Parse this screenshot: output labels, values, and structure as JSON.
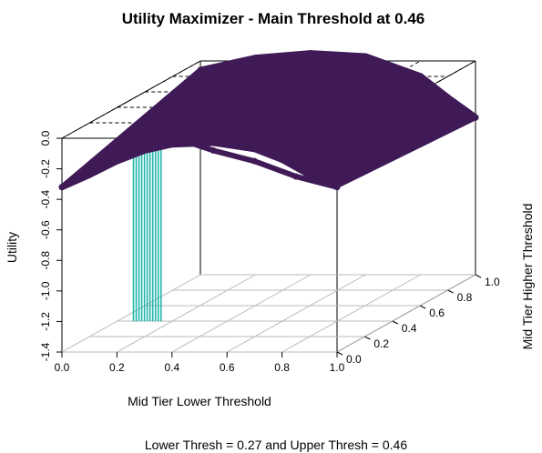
{
  "chart_data": {
    "type": "scatter3d",
    "title": "Utility Maximizer - Main Threshold at 0.46",
    "xlabel": "Mid Tier Lower Threshold",
    "ylabel": "Mid Tier Higher Threshold",
    "zlabel": "Utility",
    "subtitle": "Lower Thresh = 0.27 and Upper Thresh = 0.46",
    "xlim": [
      0,
      1
    ],
    "ylim": [
      0,
      1
    ],
    "zlim": [
      -1.4,
      0
    ],
    "x_ticks": [
      "0.0",
      "0.2",
      "0.4",
      "0.6",
      "0.8",
      "1.0"
    ],
    "y_ticks": [
      "0.0",
      "0.2",
      "0.4",
      "0.6",
      "0.8",
      "1.0"
    ],
    "z_ticks": [
      "0.0",
      "-0.2",
      "-0.4",
      "-0.6",
      "-0.8",
      "-1.0",
      "-1.2",
      "-1.4"
    ],
    "colors": {
      "surface": "#3f1a57",
      "optimum": "#1fb5a9"
    },
    "series": [
      {
        "role": "front-ridge",
        "points": [
          {
            "x": 0.0,
            "y": 0.0,
            "z": -0.32
          },
          {
            "x": 0.1,
            "y": 0.0,
            "z": -0.24
          },
          {
            "x": 0.2,
            "y": 0.0,
            "z": -0.15
          },
          {
            "x": 0.3,
            "y": 0.0,
            "z": -0.08
          },
          {
            "x": 0.4,
            "y": 0.0,
            "z": -0.04
          },
          {
            "x": 0.55,
            "y": 0.0,
            "z": -0.03
          },
          {
            "x": 0.7,
            "y": 0.0,
            "z": -0.07
          },
          {
            "x": 0.8,
            "y": 0.0,
            "z": -0.14
          },
          {
            "x": 0.9,
            "y": 0.0,
            "z": -0.24
          },
          {
            "x": 1.0,
            "y": 0.0,
            "z": -0.31
          }
        ]
      },
      {
        "role": "back-ridge",
        "points": [
          {
            "x": 0.0,
            "y": 1.0,
            "z": -0.06
          },
          {
            "x": 0.2,
            "y": 1.0,
            "z": 0.02
          },
          {
            "x": 0.4,
            "y": 1.0,
            "z": 0.05
          },
          {
            "x": 0.6,
            "y": 1.0,
            "z": 0.03
          },
          {
            "x": 0.8,
            "y": 1.0,
            "z": -0.1
          },
          {
            "x": 0.9,
            "y": 1.0,
            "z": -0.24
          },
          {
            "x": 1.0,
            "y": 1.0,
            "z": -0.37
          }
        ]
      },
      {
        "role": "lower-edge",
        "points": [
          {
            "x": 0.45,
            "y": 0.0,
            "z": -0.02
          },
          {
            "x": 0.55,
            "y": 0.0,
            "z": -0.08
          },
          {
            "x": 0.7,
            "y": 0.0,
            "z": -0.15
          },
          {
            "x": 0.85,
            "y": 0.0,
            "z": -0.25
          },
          {
            "x": 1.0,
            "y": 0.0,
            "z": -0.32
          }
        ]
      },
      {
        "role": "optimum-drops",
        "points": [
          {
            "x": 0.26,
            "y": 0.0,
            "z": -0.03
          },
          {
            "x": 0.27,
            "y": 0.0,
            "z": -0.03
          },
          {
            "x": 0.28,
            "y": 0.0,
            "z": -0.04
          },
          {
            "x": 0.29,
            "y": 0.0,
            "z": -0.01
          },
          {
            "x": 0.3,
            "y": 0.0,
            "z": -0.04
          },
          {
            "x": 0.31,
            "y": 0.0,
            "z": -0.02
          },
          {
            "x": 0.32,
            "y": 0.0,
            "z": -0.04
          },
          {
            "x": 0.33,
            "y": 0.0,
            "z": -0.02
          },
          {
            "x": 0.34,
            "y": 0.0,
            "z": -0.01
          },
          {
            "x": 0.35,
            "y": 0.0,
            "z": -0.03
          },
          {
            "x": 0.36,
            "y": 0.0,
            "z": -0.01
          }
        ]
      }
    ]
  }
}
